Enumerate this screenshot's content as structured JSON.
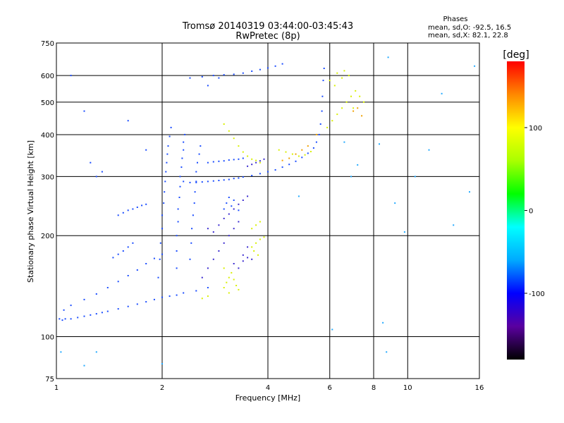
{
  "chart_data": {
    "type": "scatter",
    "title_line1": "Tromsø 20140319 03:44:00-03:45:43",
    "title_line2": "RwPretec (8p)",
    "xlabel": "Frequency [MHz]",
    "ylabel": "Stationary phase Virtual Height [km]",
    "x_scale": "log",
    "y_scale": "log",
    "xlim": [
      1,
      16
    ],
    "ylim": [
      75,
      750
    ],
    "x_ticks": [
      "1",
      "2",
      "4",
      "6",
      "8",
      "10",
      "16"
    ],
    "y_ticks": [
      "75",
      "100",
      "200",
      "300",
      "400",
      "500",
      "600",
      "750"
    ],
    "grid": true,
    "stats_panel": {
      "heading": "Phases",
      "line_o": "mean, sd,O: -92.5, 16.5",
      "line_x": "mean, sd,X: 82.1, 22.8"
    },
    "colorbar": {
      "label": "[deg]",
      "range": [
        -180,
        180
      ],
      "ticks": [
        "100",
        "0",
        "-100"
      ],
      "colors": [
        "#000000",
        "#5a00a0",
        "#0000ff",
        "#00aaff",
        "#00ffff",
        "#00ff00",
        "#aaff00",
        "#ffff00",
        "#ff8800",
        "#ff0000"
      ]
    },
    "series": [
      {
        "mode": "O",
        "color": "#1a4cff",
        "points": [
          [
            1.02,
            113
          ],
          [
            1.04,
            112
          ],
          [
            1.06,
            113
          ],
          [
            1.1,
            113
          ],
          [
            1.15,
            114
          ],
          [
            1.2,
            115
          ],
          [
            1.25,
            116
          ],
          [
            1.3,
            117
          ],
          [
            1.35,
            118
          ],
          [
            1.4,
            119
          ],
          [
            1.5,
            121
          ],
          [
            1.6,
            123
          ],
          [
            1.7,
            125
          ],
          [
            1.8,
            127
          ],
          [
            1.9,
            129
          ],
          [
            2.0,
            131
          ],
          [
            2.1,
            132
          ],
          [
            2.2,
            133
          ],
          [
            2.3,
            135
          ],
          [
            2.5,
            137
          ],
          [
            2.7,
            140
          ],
          [
            1.05,
            120
          ],
          [
            1.1,
            124
          ],
          [
            1.2,
            129
          ],
          [
            1.3,
            134
          ],
          [
            1.4,
            140
          ],
          [
            1.5,
            146
          ],
          [
            1.6,
            152
          ],
          [
            1.7,
            158
          ],
          [
            1.8,
            165
          ],
          [
            1.9,
            171
          ],
          [
            2.0,
            176
          ],
          [
            1.45,
            172
          ],
          [
            1.5,
            176
          ],
          [
            1.55,
            180
          ],
          [
            1.6,
            185
          ],
          [
            1.65,
            190
          ],
          [
            1.5,
            230
          ],
          [
            1.55,
            234
          ],
          [
            1.6,
            238
          ],
          [
            1.65,
            240
          ],
          [
            1.7,
            243
          ],
          [
            1.75,
            246
          ],
          [
            1.8,
            248
          ],
          [
            1.95,
            150
          ],
          [
            1.97,
            170
          ],
          [
            1.98,
            190
          ],
          [
            2.0,
            210
          ],
          [
            2.0,
            230
          ],
          [
            2.02,
            250
          ],
          [
            2.03,
            270
          ],
          [
            2.04,
            290
          ],
          [
            2.05,
            310
          ],
          [
            2.06,
            330
          ],
          [
            2.07,
            350
          ],
          [
            2.08,
            370
          ],
          [
            2.1,
            395
          ],
          [
            2.12,
            420
          ],
          [
            2.2,
            160
          ],
          [
            2.2,
            180
          ],
          [
            2.2,
            200
          ],
          [
            2.22,
            220
          ],
          [
            2.22,
            240
          ],
          [
            2.24,
            260
          ],
          [
            2.25,
            280
          ],
          [
            2.25,
            300
          ],
          [
            2.27,
            320
          ],
          [
            2.28,
            340
          ],
          [
            2.3,
            360
          ],
          [
            2.3,
            380
          ],
          [
            2.32,
            400
          ],
          [
            2.4,
            170
          ],
          [
            2.42,
            190
          ],
          [
            2.43,
            210
          ],
          [
            2.45,
            230
          ],
          [
            2.47,
            250
          ],
          [
            2.48,
            270
          ],
          [
            2.5,
            290
          ],
          [
            2.5,
            310
          ],
          [
            2.52,
            330
          ],
          [
            2.55,
            350
          ],
          [
            2.57,
            370
          ],
          [
            2.3,
            290
          ],
          [
            2.4,
            288
          ],
          [
            2.5,
            288
          ],
          [
            2.6,
            289
          ],
          [
            2.7,
            290
          ],
          [
            2.8,
            291
          ],
          [
            2.9,
            292
          ],
          [
            3.0,
            293
          ],
          [
            3.1,
            294
          ],
          [
            3.2,
            296
          ],
          [
            3.3,
            297
          ],
          [
            3.4,
            299
          ],
          [
            3.6,
            302
          ],
          [
            3.8,
            306
          ],
          [
            4.0,
            310
          ],
          [
            4.2,
            314
          ],
          [
            4.4,
            320
          ],
          [
            4.6,
            326
          ],
          [
            4.8,
            333
          ],
          [
            5.0,
            342
          ],
          [
            5.2,
            352
          ],
          [
            5.4,
            365
          ],
          [
            5.5,
            380
          ],
          [
            5.6,
            400
          ],
          [
            5.65,
            430
          ],
          [
            5.7,
            470
          ],
          [
            5.72,
            520
          ],
          [
            5.75,
            580
          ],
          [
            5.78,
            630
          ],
          [
            2.7,
            330
          ],
          [
            2.8,
            332
          ],
          [
            2.9,
            333
          ],
          [
            3.0,
            334
          ],
          [
            3.1,
            336
          ],
          [
            3.2,
            337
          ],
          [
            3.3,
            338
          ],
          [
            3.4,
            340
          ],
          [
            2.4,
            590
          ],
          [
            2.6,
            595
          ],
          [
            2.8,
            600
          ],
          [
            3.0,
            603
          ],
          [
            3.2,
            605
          ],
          [
            3.4,
            610
          ],
          [
            3.6,
            618
          ],
          [
            3.8,
            625
          ],
          [
            4.0,
            632
          ],
          [
            4.2,
            640
          ],
          [
            4.4,
            650
          ],
          [
            3.0,
            240
          ],
          [
            3.05,
            250
          ],
          [
            3.1,
            260
          ],
          [
            3.15,
            245
          ],
          [
            3.2,
            255
          ],
          [
            3.3,
            238
          ],
          [
            1.25,
            330
          ],
          [
            1.3,
            300
          ],
          [
            1.6,
            440
          ],
          [
            1.2,
            470
          ],
          [
            1.1,
            600
          ],
          [
            1.35,
            310
          ],
          [
            1.8,
            360
          ],
          [
            2.7,
            560
          ],
          [
            2.9,
            590
          ]
        ]
      },
      {
        "mode": "O-deep",
        "color": "#3a2ad0",
        "points": [
          [
            2.6,
            150
          ],
          [
            2.7,
            160
          ],
          [
            2.8,
            170
          ],
          [
            2.9,
            180
          ],
          [
            3.0,
            190
          ],
          [
            3.1,
            200
          ],
          [
            3.2,
            210
          ],
          [
            3.3,
            220
          ],
          [
            3.4,
            175
          ],
          [
            3.5,
            185
          ],
          [
            3.6,
            170
          ],
          [
            2.7,
            210
          ],
          [
            2.8,
            205
          ],
          [
            2.9,
            215
          ],
          [
            3.0,
            225
          ],
          [
            3.1,
            232
          ],
          [
            3.2,
            240
          ],
          [
            3.3,
            248
          ],
          [
            3.4,
            255
          ],
          [
            3.5,
            262
          ],
          [
            3.5,
            322
          ],
          [
            3.6,
            326
          ],
          [
            3.7,
            330
          ],
          [
            3.8,
            334
          ],
          [
            3.9,
            338
          ],
          [
            3.2,
            165
          ],
          [
            3.3,
            160
          ],
          [
            3.4,
            168
          ],
          [
            3.5,
            172
          ]
        ]
      },
      {
        "mode": "X",
        "color": "#d8f000",
        "points": [
          [
            3.0,
            140
          ],
          [
            3.05,
            145
          ],
          [
            3.1,
            150
          ],
          [
            3.15,
            155
          ],
          [
            3.2,
            148
          ],
          [
            3.25,
            142
          ],
          [
            3.3,
            138
          ],
          [
            3.0,
            160
          ],
          [
            3.1,
            135
          ],
          [
            3.6,
            185
          ],
          [
            3.7,
            190
          ],
          [
            3.8,
            195
          ],
          [
            3.9,
            198
          ],
          [
            3.6,
            210
          ],
          [
            3.7,
            215
          ],
          [
            3.8,
            220
          ],
          [
            3.65,
            180
          ],
          [
            3.75,
            175
          ],
          [
            3.0,
            430
          ],
          [
            3.1,
            410
          ],
          [
            3.2,
            390
          ],
          [
            3.3,
            370
          ],
          [
            3.4,
            355
          ],
          [
            3.5,
            345
          ],
          [
            3.6,
            338
          ],
          [
            3.7,
            335
          ],
          [
            3.8,
            330
          ],
          [
            4.3,
            360
          ],
          [
            4.5,
            355
          ],
          [
            4.7,
            350
          ],
          [
            4.9,
            345
          ],
          [
            5.1,
            348
          ],
          [
            5.3,
            356
          ],
          [
            5.9,
            420
          ],
          [
            6.1,
            440
          ],
          [
            6.3,
            460
          ],
          [
            6.5,
            480
          ],
          [
            6.7,
            500
          ],
          [
            6.9,
            520
          ],
          [
            7.1,
            540
          ],
          [
            7.3,
            520
          ],
          [
            6.2,
            560
          ],
          [
            6.5,
            590
          ],
          [
            6.8,
            600
          ],
          [
            7.0,
            480
          ],
          [
            7.5,
            500
          ],
          [
            6.0,
            580
          ],
          [
            6.3,
            610
          ],
          [
            6.6,
            620
          ],
          [
            2.6,
            130
          ],
          [
            2.7,
            132
          ]
        ]
      },
      {
        "mode": "X-orange",
        "color": "#f0a000",
        "points": [
          [
            4.4,
            335
          ],
          [
            4.6,
            340
          ],
          [
            4.8,
            350
          ],
          [
            5.0,
            360
          ],
          [
            5.2,
            370
          ],
          [
            7.0,
            470
          ],
          [
            7.2,
            480
          ],
          [
            7.4,
            455
          ],
          [
            5.5,
            400
          ]
        ]
      },
      {
        "mode": "scatter-noise",
        "color": "#22aaff",
        "points": [
          [
            1.03,
            90
          ],
          [
            1.2,
            82
          ],
          [
            1.3,
            90
          ],
          [
            2.0,
            83
          ],
          [
            4.9,
            262
          ],
          [
            6.6,
            380
          ],
          [
            6.9,
            300
          ],
          [
            7.2,
            325
          ],
          [
            8.3,
            375
          ],
          [
            8.8,
            680
          ],
          [
            9.2,
            250
          ],
          [
            9.8,
            205
          ],
          [
            10.5,
            300
          ],
          [
            11.5,
            360
          ],
          [
            12.5,
            530
          ],
          [
            13.5,
            215
          ],
          [
            15.0,
            270
          ],
          [
            15.5,
            640
          ],
          [
            8.7,
            90
          ],
          [
            8.5,
            110
          ],
          [
            6.1,
            105
          ]
        ]
      }
    ]
  }
}
